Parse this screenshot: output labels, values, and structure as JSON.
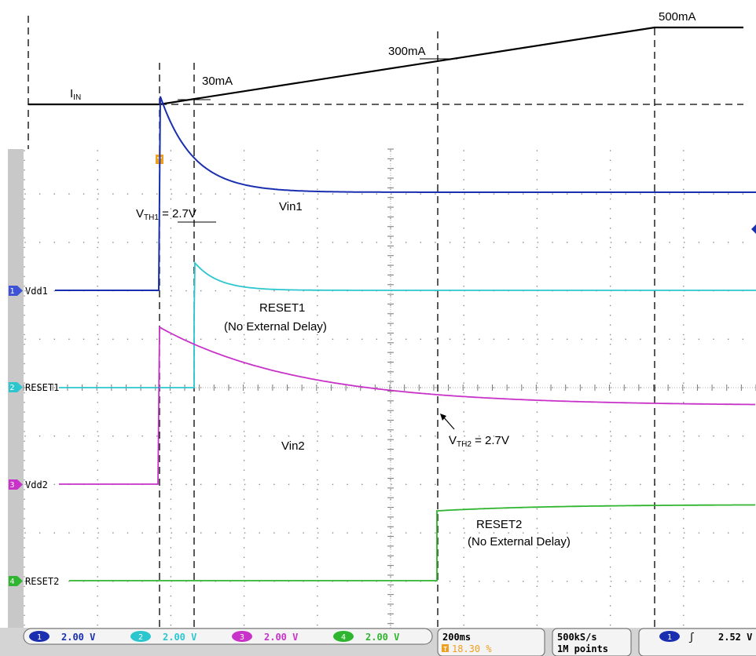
{
  "current_profile": {
    "label_main": "I",
    "label_sub": "IN",
    "markers": [
      "30mA",
      "300mA",
      "500mA"
    ]
  },
  "scope": {
    "trigger_marker": "T",
    "channels": [
      {
        "num": "1",
        "label": "Vdd1",
        "color": "#1a2fb0",
        "light": "#3e52d6"
      },
      {
        "num": "2",
        "label": "RESET1",
        "color": "#2cc6cf",
        "light": "#2cc6cf"
      },
      {
        "num": "3",
        "label": "Vdd2",
        "color": "#c832c8",
        "light": "#c832c8"
      },
      {
        "num": "4",
        "label": "RESET2",
        "color": "#2fb52f",
        "light": "#2fb52f"
      }
    ],
    "annotations": {
      "vth1_main": "V",
      "vth1_sub": "TH1",
      "vth1_value": " = 2.7V",
      "vin1": "Vin1",
      "reset1": "RESET1",
      "reset1_note": "(No External Delay)",
      "vin2": "Vin2",
      "vth2_main": "V",
      "vth2_sub": "TH2",
      "vth2_value": " = 2.7V",
      "reset2": "RESET2",
      "reset2_note": "(No External Delay)"
    }
  },
  "status_bar": {
    "ch_scales": [
      {
        "num": "1",
        "value": "2.00 V"
      },
      {
        "num": "2",
        "value": "2.00 V"
      },
      {
        "num": "3",
        "value": "2.00 V"
      },
      {
        "num": "4",
        "value": "2.00 V"
      }
    ],
    "timebase": "200ms",
    "trigger_position": "18.30 %",
    "sample_rate": "500kS/s",
    "record_length": "1M points",
    "trigger_source": "1",
    "trigger_slope": "ʃ",
    "trigger_level": "2.52 V"
  },
  "colors": {
    "ch1": "#1a2fb0",
    "ch2": "#2cc6cf",
    "ch3": "#c832c8",
    "ch4": "#2fb52f",
    "trigger": "#f0a020",
    "left_strip": "#c8c8c8"
  }
}
